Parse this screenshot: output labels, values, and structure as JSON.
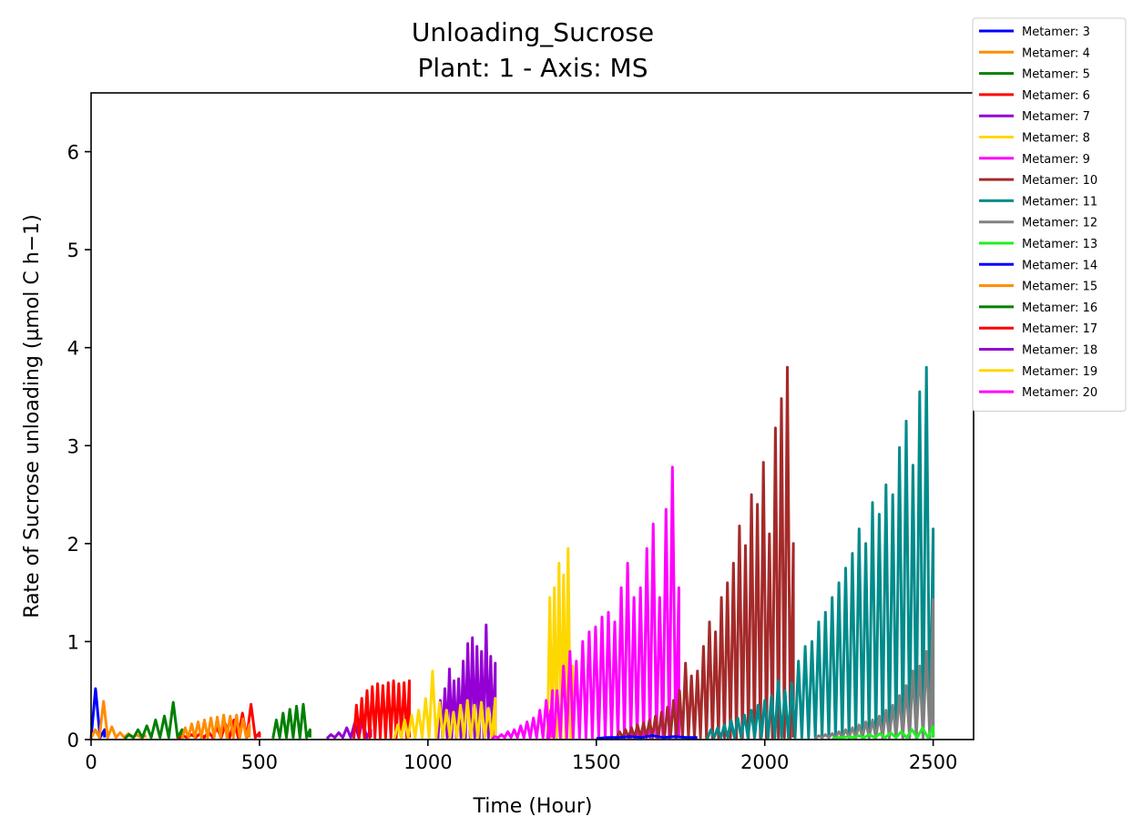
{
  "chart_data": {
    "type": "line",
    "title": "Unloading_Sucrose",
    "subtitle": "Plant: 1 - Axis: MS",
    "xlabel": "Time (Hour)",
    "ylabel": "Rate of Sucrose unloading (µmol C h−1)",
    "xlim": [
      0,
      2620
    ],
    "ylim": [
      0,
      6.6
    ],
    "xticks": [
      0,
      500,
      1000,
      1500,
      2000,
      2500
    ],
    "xtick_labels": [
      "0",
      "500",
      "1000",
      "1500",
      "2000",
      "2500"
    ],
    "yticks": [
      0,
      1,
      2,
      3,
      4,
      5,
      6
    ],
    "ytick_labels": [
      "0",
      "1",
      "2",
      "3",
      "4",
      "5",
      "6"
    ],
    "grid": false,
    "legend_position": "outside-top-right",
    "series": [
      {
        "name": "Metamer: 3",
        "color": "#0000ff",
        "start": 0,
        "end": 40,
        "peaks": [
          0.52,
          0.1
        ]
      },
      {
        "name": "Metamer: 4",
        "color": "#ff8c00",
        "start": 0,
        "end": 160,
        "peaks": [
          0.1,
          0.39,
          0.13,
          0.07,
          0.06,
          0.05,
          0.04
        ]
      },
      {
        "name": "Metamer: 5",
        "color": "#008000",
        "start": 100,
        "end": 270,
        "peaks": [
          0.05,
          0.1,
          0.14,
          0.2,
          0.24,
          0.38,
          0.1
        ]
      },
      {
        "name": "Metamer: 6",
        "color": "#ff0000",
        "start": 260,
        "end": 500,
        "peaks": [
          0.04,
          0.05,
          0.06,
          0.08,
          0.12,
          0.16,
          0.2,
          0.27,
          0.36,
          0.07
        ]
      },
      {
        "name": "Metamer: 7",
        "color": "#9400d3",
        "start": 700,
        "end": 830,
        "peaks": [
          0.05,
          0.07,
          0.12,
          0.17,
          0.2,
          0.1
        ]
      },
      {
        "name": "Metamer: 8",
        "color": "#ffd700",
        "start": 1355,
        "end": 1430,
        "peaks": [
          1.45,
          1.55,
          1.8,
          1.68,
          1.95,
          0.75
        ]
      },
      {
        "name": "Metamer: 9",
        "color": "#ff00ff",
        "start": 1355,
        "end": 1745,
        "peaks": [
          0.3,
          0.5,
          0.75,
          0.9,
          0.8,
          1.0,
          1.1,
          1.15,
          1.25,
          1.3,
          1.2,
          1.55,
          1.8,
          1.45,
          1.55,
          1.95,
          2.2,
          1.45,
          2.35,
          2.78,
          1.55
        ]
      },
      {
        "name": "Metamer: 10",
        "color": "#a52a2a",
        "start": 1560,
        "end": 2085,
        "peaks": [
          0.08,
          0.1,
          0.12,
          0.15,
          0.17,
          0.2,
          0.24,
          0.28,
          0.33,
          0.4,
          0.5,
          0.78,
          0.65,
          0.7,
          0.95,
          1.2,
          1.1,
          1.45,
          1.6,
          1.8,
          2.18,
          1.98,
          2.5,
          2.4,
          2.83,
          2.1,
          3.18,
          3.48,
          3.8,
          2.0
        ]
      },
      {
        "name": "Metamer: 11",
        "color": "#008b8b",
        "start": 1830,
        "end": 2500,
        "peaks": [
          0.1,
          0.12,
          0.15,
          0.2,
          0.22,
          0.25,
          0.3,
          0.35,
          0.4,
          0.45,
          0.6,
          0.5,
          0.58,
          0.8,
          0.95,
          1.0,
          1.2,
          1.3,
          1.45,
          1.6,
          1.75,
          1.9,
          2.15,
          2.0,
          2.42,
          2.3,
          2.6,
          2.5,
          2.98,
          3.25,
          2.8,
          3.55,
          3.8,
          2.15
        ]
      },
      {
        "name": "Metamer: 12",
        "color": "#808080",
        "start": 2150,
        "end": 2500,
        "peaks": [
          0.04,
          0.05,
          0.06,
          0.08,
          0.1,
          0.12,
          0.15,
          0.18,
          0.2,
          0.24,
          0.3,
          0.35,
          0.45,
          0.55,
          0.7,
          0.75,
          0.9,
          1.43
        ]
      },
      {
        "name": "Metamer: 13",
        "color": "#22ee22",
        "start": 2200,
        "end": 2500,
        "peaks": [
          0.02,
          0.03,
          0.04,
          0.05,
          0.06,
          0.07,
          0.08,
          0.1,
          0.12,
          0.13
        ]
      },
      {
        "name": "Metamer: 14",
        "color": "#0000ff",
        "start": 1500,
        "end": 1800,
        "peaks": [
          0.02,
          0.03,
          0.04,
          0.03,
          0.02
        ]
      },
      {
        "name": "Metamer: 15",
        "color": "#ff8c00",
        "start": 270,
        "end": 470,
        "peaks": [
          0.12,
          0.16,
          0.18,
          0.2,
          0.22,
          0.23,
          0.25,
          0.24,
          0.25,
          0.21,
          0.15
        ]
      },
      {
        "name": "Metamer: 16",
        "color": "#008000",
        "start": 540,
        "end": 650,
        "peaks": [
          0.2,
          0.27,
          0.31,
          0.34,
          0.36,
          0.1
        ]
      },
      {
        "name": "Metamer: 17",
        "color": "#ff0000",
        "start": 780,
        "end": 945,
        "peaks": [
          0.35,
          0.42,
          0.5,
          0.54,
          0.57,
          0.55,
          0.58,
          0.6,
          0.57,
          0.58,
          0.6
        ]
      },
      {
        "name": "Metamer: 18",
        "color": "#9400d3",
        "start": 1030,
        "end": 1200,
        "peaks": [
          0.4,
          0.52,
          0.72,
          0.6,
          0.62,
          0.8,
          0.98,
          1.04,
          0.95,
          0.9,
          1.17,
          0.85,
          0.78
        ]
      },
      {
        "name": "Metamer: 19",
        "color": "#ffd700",
        "start": 900,
        "end": 1200,
        "peaks": [
          0.15,
          0.2,
          0.25,
          0.3,
          0.42,
          0.7,
          0.38,
          0.3,
          0.28,
          0.35,
          0.4,
          0.35,
          0.38,
          0.32,
          0.42
        ]
      },
      {
        "name": "Metamer: 20",
        "color": "#ff00ff",
        "start": 1190,
        "end": 1370,
        "peaks": [
          0.03,
          0.05,
          0.08,
          0.1,
          0.14,
          0.18,
          0.22,
          0.3,
          0.4,
          0.5
        ]
      }
    ]
  }
}
